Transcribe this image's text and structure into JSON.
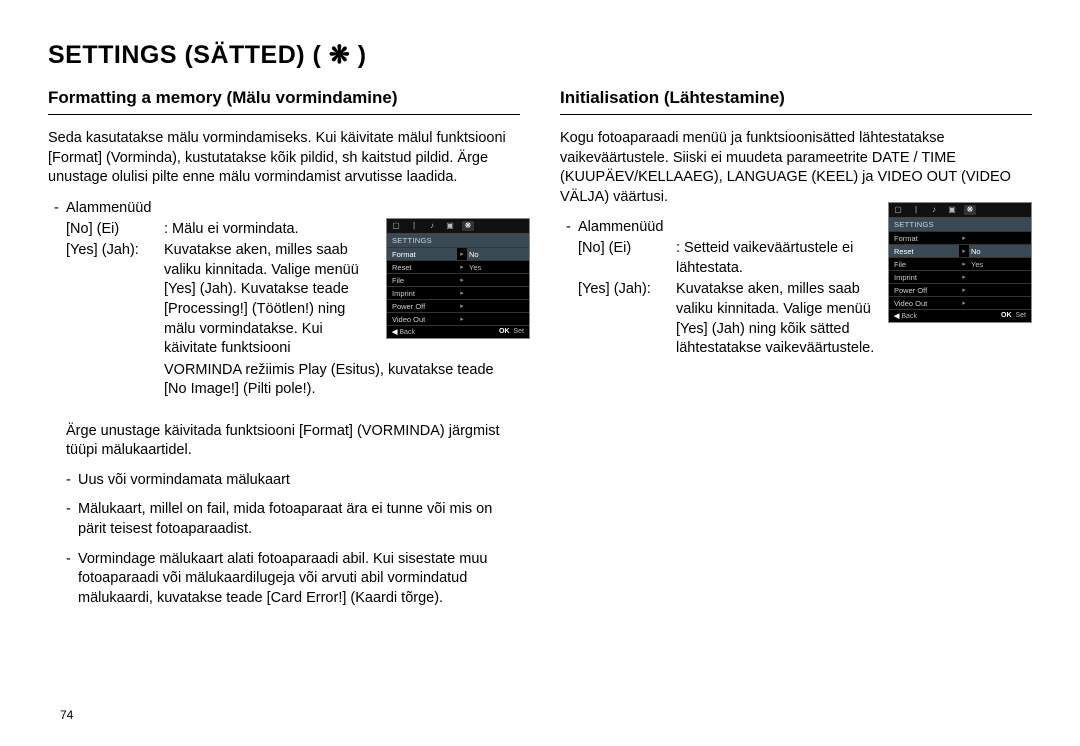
{
  "page": {
    "title": "SETTINGS (SÄTTED) ( ❋ )",
    "number": "74"
  },
  "left": {
    "heading": "Formatting a memory (Mälu vormindamine)",
    "intro": "Seda kasutatakse mälu vormindamiseks. Kui käivitate mälul funktsiooni [Format] (Vorminda), kustutatakse kõik pildid, sh kaitstud pildid. Ärge unustage olulisi pilte enne mälu vormindamist arvutisse laadida.",
    "submenu_label": "Alammenüüd",
    "opt_no_key": "[No] (Ei)",
    "opt_no_val": ": Mälu ei vormindata.",
    "opt_yes_key": "[Yes] (Jah):",
    "opt_yes_val": "Kuvatakse aken, milles saab valiku kinnitada. Valige menüü [Yes] (Jah). Kuvatakse teade [Processing!] (Töötlen!) ning mälu vormindatakse. Kui käivitate funktsiooni",
    "opt_yes_tail": "VORMINDA režiimis Play (Esitus), kuvatakse teade [No Image!] (Pilti pole!).",
    "note_intro": "Ärge unustage käivitada funktsiooni [Format] (VORMINDA) järgmist tüüpi mälukaartidel.",
    "note_items": [
      "Uus või vormindamata mälukaart",
      "Mälukaart, millel on fail, mida fotoaparaat ära ei tunne või mis on pärit teisest fotoaparaadist.",
      "Vormindage mälukaart alati fotoaparaadi abil. Kui sisestate muu fotoaparaadi või mälukaardilugeja või arvuti abil vormindatud mälukaardi, kuvatakse teade [Card Error!] (Kaardi tõrge)."
    ],
    "menu": {
      "header": "SETTINGS",
      "rows": [
        {
          "label": "Format",
          "value": "No",
          "hl": true
        },
        {
          "label": "Reset",
          "value": "Yes"
        },
        {
          "label": "File",
          "value": ""
        },
        {
          "label": "Imprint",
          "value": ""
        },
        {
          "label": "Power Off",
          "value": ""
        },
        {
          "label": "Video Out",
          "value": ""
        }
      ],
      "footer_back": "Back",
      "footer_ok": "OK",
      "footer_set": "Set"
    }
  },
  "right": {
    "heading": "Initialisation (Lähtestamine)",
    "intro": "Kogu fotoaparaadi menüü ja funktsioonisätted lähtestatakse vaikeväärtustele. Siiski ei muudeta parameetrite DATE / TIME  (KUUPÄEV/KELLAAEG), LANGUAGE (KEEL) ja VIDEO OUT (VIDEO VÄLJA) väärtusi.",
    "submenu_label": "Alammenüüd",
    "opt_no_key": "[No] (Ei)",
    "opt_no_val": ": Setteid vaikeväärtustele ei lähtestata.",
    "opt_yes_key": "[Yes] (Jah):",
    "opt_yes_val": "Kuvatakse aken, milles saab valiku kinnitada. Valige menüü [Yes] (Jah) ning kõik sätted lähtestatakse vaikeväärtustele.",
    "menu": {
      "header": "SETTINGS",
      "rows": [
        {
          "label": "Format",
          "value": ""
        },
        {
          "label": "Reset",
          "value": "No",
          "hl": true
        },
        {
          "label": "File",
          "value": "Yes"
        },
        {
          "label": "Imprint",
          "value": ""
        },
        {
          "label": "Power Off",
          "value": ""
        },
        {
          "label": "Video Out",
          "value": ""
        }
      ],
      "footer_back": "Back",
      "footer_ok": "OK",
      "footer_set": "Set"
    }
  }
}
